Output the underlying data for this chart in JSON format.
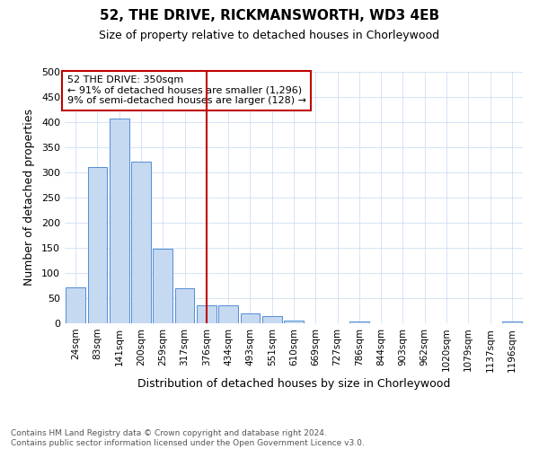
{
  "title": "52, THE DRIVE, RICKMANSWORTH, WD3 4EB",
  "subtitle": "Size of property relative to detached houses in Chorleywood",
  "xlabel": "Distribution of detached houses by size in Chorleywood",
  "ylabel": "Number of detached properties",
  "categories": [
    "24sqm",
    "83sqm",
    "141sqm",
    "200sqm",
    "259sqm",
    "317sqm",
    "376sqm",
    "434sqm",
    "493sqm",
    "551sqm",
    "610sqm",
    "669sqm",
    "727sqm",
    "786sqm",
    "844sqm",
    "903sqm",
    "962sqm",
    "1020sqm",
    "1079sqm",
    "1137sqm",
    "1196sqm"
  ],
  "values": [
    72,
    311,
    407,
    321,
    148,
    69,
    35,
    36,
    20,
    14,
    6,
    0,
    0,
    3,
    0,
    0,
    0,
    0,
    0,
    0,
    3
  ],
  "bar_color": "#c5d9f1",
  "bar_edge_color": "#538dd5",
  "vline_x_index": 6,
  "vline_color": "#c00000",
  "annotation_text": "52 THE DRIVE: 350sqm\n← 91% of detached houses are smaller (1,296)\n9% of semi-detached houses are larger (128) →",
  "annotation_box_color": "#ffffff",
  "annotation_box_edge": "#c00000",
  "ylim": [
    0,
    500
  ],
  "yticks": [
    0,
    50,
    100,
    150,
    200,
    250,
    300,
    350,
    400,
    450,
    500
  ],
  "footer_text": "Contains HM Land Registry data © Crown copyright and database right 2024.\nContains public sector information licensed under the Open Government Licence v3.0.",
  "background_color": "#ffffff",
  "grid_color": "#c5d9f1"
}
